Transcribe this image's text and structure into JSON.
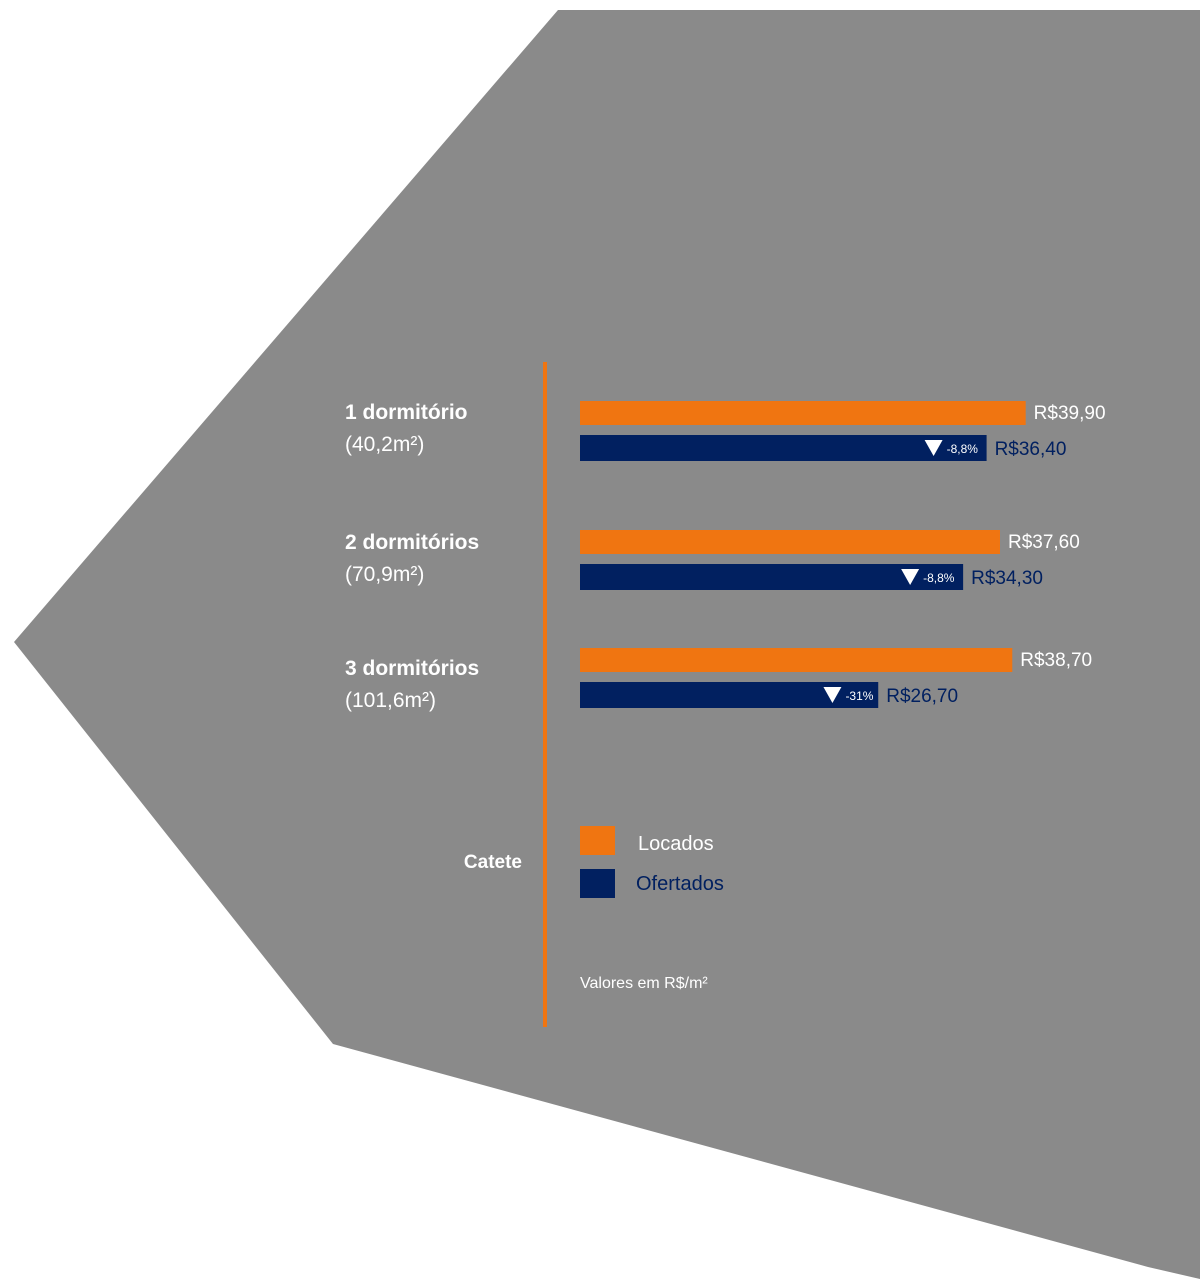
{
  "colors": {
    "background_shape": "#8a8a8a",
    "locados": "#f07511",
    "ofertados": "#012060",
    "white": "#ffffff"
  },
  "neighborhood": "Catete",
  "note": "Valores em R$/m²",
  "chart_data": {
    "type": "bar",
    "orientation": "horizontal",
    "categories": [
      "1 dormitório",
      "2 dormitórios",
      "3 dormitórios"
    ],
    "category_areas": [
      "(40,2m²)",
      "(70,9m²)",
      "(101,6m²)"
    ],
    "series": [
      {
        "name": "Locados",
        "color": "#f07511",
        "values": [
          39.9,
          37.6,
          38.7
        ],
        "value_labels": [
          "R$39,90",
          "R$37,60",
          "R$38,70"
        ]
      },
      {
        "name": "Ofertados",
        "color": "#012060",
        "values": [
          36.4,
          34.3,
          26.7
        ],
        "value_labels": [
          "R$36,40",
          "R$34,30",
          "R$26,70"
        ],
        "change_labels": [
          "-8,8%",
          "-8,8%",
          "-31%"
        ]
      }
    ],
    "legend": [
      "Locados",
      "Ofertados"
    ],
    "legend_position": "bottom",
    "grid": false
  }
}
